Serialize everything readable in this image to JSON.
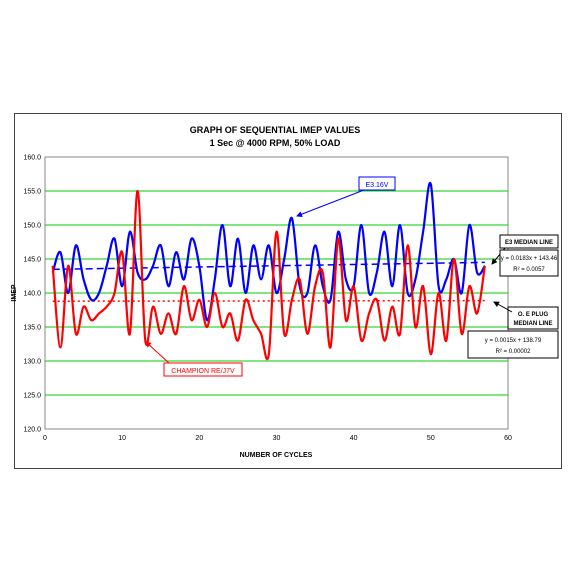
{
  "chart_data": {
    "type": "line",
    "title": "GRAPH OF SEQUENTIAL IMEP VALUES",
    "subtitle": "1 Sec @ 4000 RPM, 50% LOAD",
    "xlabel": "NUMBER OF CYCLES",
    "ylabel": "IMEP",
    "xlim": [
      0,
      60
    ],
    "ylim": [
      120,
      160
    ],
    "x_ticks": [
      "0",
      "10",
      "20",
      "30",
      "40",
      "50",
      "60"
    ],
    "y_ticks": [
      "120.0",
      "125.0",
      "130.0",
      "135.0",
      "140.0",
      "145.0",
      "150.0",
      "155.0",
      "160.0"
    ],
    "grid": true,
    "grid_color": "#00cc00",
    "x": [
      1,
      2,
      3,
      4,
      5,
      6,
      7,
      8,
      9,
      10,
      11,
      12,
      13,
      14,
      15,
      16,
      17,
      18,
      19,
      20,
      21,
      22,
      23,
      24,
      25,
      26,
      27,
      28,
      29,
      30,
      31,
      32,
      33,
      34,
      35,
      36,
      37,
      38,
      39,
      40,
      41,
      42,
      43,
      44,
      45,
      46,
      47,
      48,
      49,
      50,
      51,
      52,
      53,
      54,
      55,
      56,
      57
    ],
    "series": [
      {
        "name": "E3.16V",
        "color": "#0000ff",
        "values": [
          143,
          146,
          140,
          147,
          142,
          139,
          140,
          144,
          148,
          141,
          149,
          143,
          142,
          144,
          147,
          141,
          146,
          142,
          148,
          144,
          136,
          142,
          150,
          141,
          148,
          140,
          147,
          142,
          147,
          140,
          145,
          151,
          141,
          140,
          147,
          141,
          139,
          149,
          142,
          141,
          150,
          140,
          143,
          149,
          141,
          150,
          140,
          142,
          149,
          156,
          141,
          142,
          145,
          140,
          150,
          143,
          144
        ]
      },
      {
        "name": "CHAMPION RE/J7V",
        "color": "#ff0000",
        "values": [
          144,
          132,
          144,
          134,
          138,
          136,
          137,
          138,
          140,
          146,
          134,
          155,
          133,
          138,
          134,
          137,
          134,
          141,
          136,
          139,
          135,
          140,
          135,
          137,
          133,
          139,
          136,
          134,
          131,
          149,
          134,
          139,
          142,
          134,
          141,
          143,
          132,
          148,
          136,
          141,
          133,
          137,
          139,
          133,
          138,
          134,
          147,
          135,
          141,
          131,
          140,
          133,
          145,
          134,
          141,
          137,
          144
        ]
      }
    ],
    "trendlines": [
      {
        "series": "E3.16V",
        "style": "dashed",
        "color": "#0000ff",
        "label": "E3 MEDIAN LINE",
        "slope": 0.0183,
        "intercept": 143.46,
        "x_range": [
          1,
          57
        ],
        "equation": "y = 0.0183x + 143.46",
        "r2": "R² = 0.0057"
      },
      {
        "series": "CHAMPION RE/J7V",
        "style": "dotted",
        "color": "#ff0000",
        "label_line1": "O. E PLUG",
        "label_line2": "MEDIAN LINE",
        "slope": 0.0015,
        "intercept": 138.79,
        "x_range": [
          1,
          57
        ],
        "equation": "y = 0.0015x + 138.79",
        "r2": "R² = 0.00002"
      }
    ],
    "annotations": [
      {
        "text": "E3.16V",
        "color": "#0000ff",
        "pointer_to": [
          32,
          151
        ]
      },
      {
        "text": "CHAMPION RE/J7V",
        "color": "#ff0000",
        "pointer_to": [
          13,
          133
        ]
      }
    ]
  }
}
